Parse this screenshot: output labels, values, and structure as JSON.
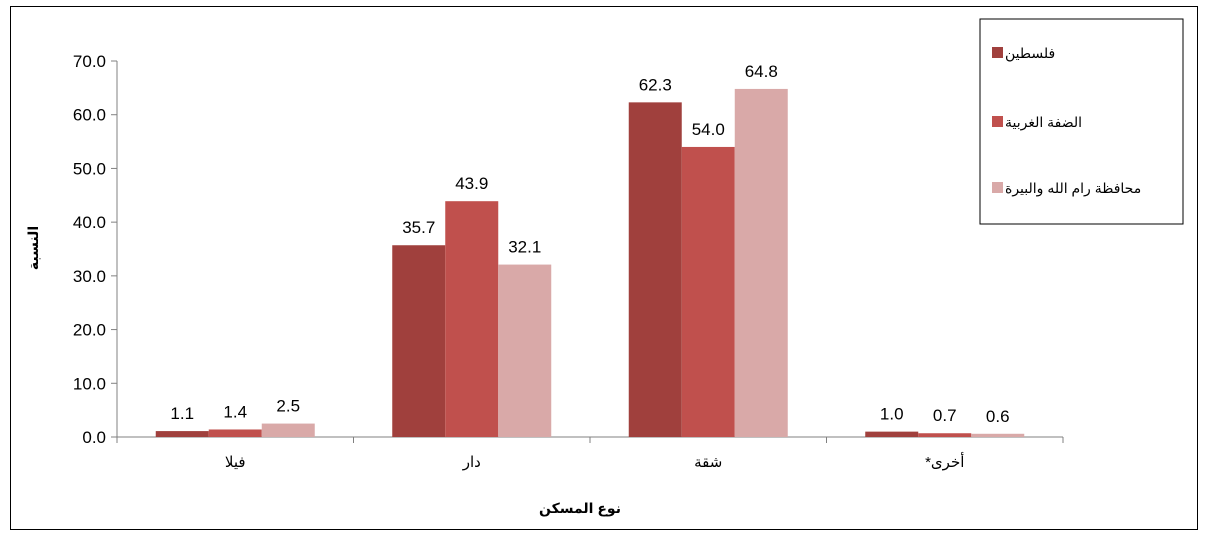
{
  "chart_data": {
    "type": "bar",
    "title": "",
    "xlabel": "نوع المسكن",
    "ylabel": "النسبة",
    "ylim": [
      0,
      70
    ],
    "yticks": [
      "0.0",
      "10.0",
      "20.0",
      "30.0",
      "40.0",
      "50.0",
      "60.0",
      "70.0"
    ],
    "yticks_values": [
      0,
      10,
      20,
      30,
      40,
      50,
      60,
      70
    ],
    "categories": [
      "فيلا",
      "دار",
      "شقة",
      "أخرى*"
    ],
    "series": [
      {
        "name": "فلسطين",
        "color": "#a0403d",
        "values": [
          1.1,
          35.7,
          62.3,
          1.0
        ],
        "labels": [
          "1.1",
          "35.7",
          "62.3",
          "1.0"
        ]
      },
      {
        "name": "الضفة الغربية",
        "color": "#c0504d",
        "values": [
          1.4,
          43.9,
          54.0,
          0.7
        ],
        "labels": [
          "1.4",
          "43.9",
          "54.0",
          "0.7"
        ]
      },
      {
        "name": "محافظة رام الله والبيرة",
        "color": "#d9a9a8",
        "values": [
          2.5,
          32.1,
          64.8,
          0.6
        ],
        "labels": [
          "2.5",
          "32.1",
          "64.8",
          "0.6"
        ]
      }
    ],
    "grid": false,
    "legend_position": "top-right"
  }
}
